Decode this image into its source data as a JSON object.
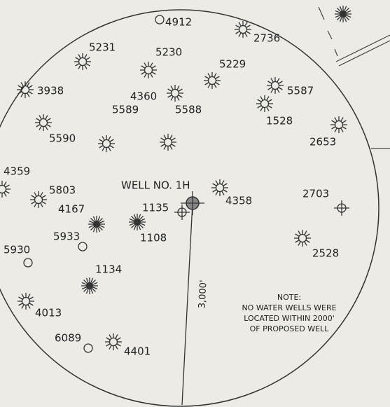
{
  "map": {
    "well_label": "WELL NO. 1H",
    "radius_label": "3,000'",
    "note": [
      "NOTE:",
      "NO WATER WELLS WERE",
      "LOCATED WITHIN 2000'",
      "OF PROPOSED WELL"
    ],
    "wells": [
      {
        "label": "4912",
        "type": "open"
      },
      {
        "label": "2736",
        "type": "gas"
      },
      {
        "label": "5231",
        "type": "gas"
      },
      {
        "label": "5230",
        "type": "gas"
      },
      {
        "label": "5229",
        "type": "gas"
      },
      {
        "label": "3938",
        "type": "gas"
      },
      {
        "label": "4360",
        "type": "gas"
      },
      {
        "label": "5587",
        "type": "gas"
      },
      {
        "label": "1528",
        "type": "gas"
      },
      {
        "label": "5590",
        "type": "gas"
      },
      {
        "label": "5589",
        "type": "gas"
      },
      {
        "label": "5588",
        "type": "gas"
      },
      {
        "label": "2653",
        "type": "gas"
      },
      {
        "label": "4359",
        "type": "gas"
      },
      {
        "label": "5803",
        "type": "gas"
      },
      {
        "label": "1135",
        "type": "location"
      },
      {
        "label": "4358",
        "type": "gas"
      },
      {
        "label": "2703",
        "type": "location"
      },
      {
        "label": "4167",
        "type": "dry"
      },
      {
        "label": "1108",
        "type": "dry"
      },
      {
        "label": "5933",
        "type": "open"
      },
      {
        "label": "2528",
        "type": "gas"
      },
      {
        "label": "5930",
        "type": "open"
      },
      {
        "label": "1134",
        "type": "dry"
      },
      {
        "label": "4013",
        "type": "gas"
      },
      {
        "label": "6089",
        "type": "open"
      },
      {
        "label": "4401",
        "type": "gas"
      }
    ]
  }
}
